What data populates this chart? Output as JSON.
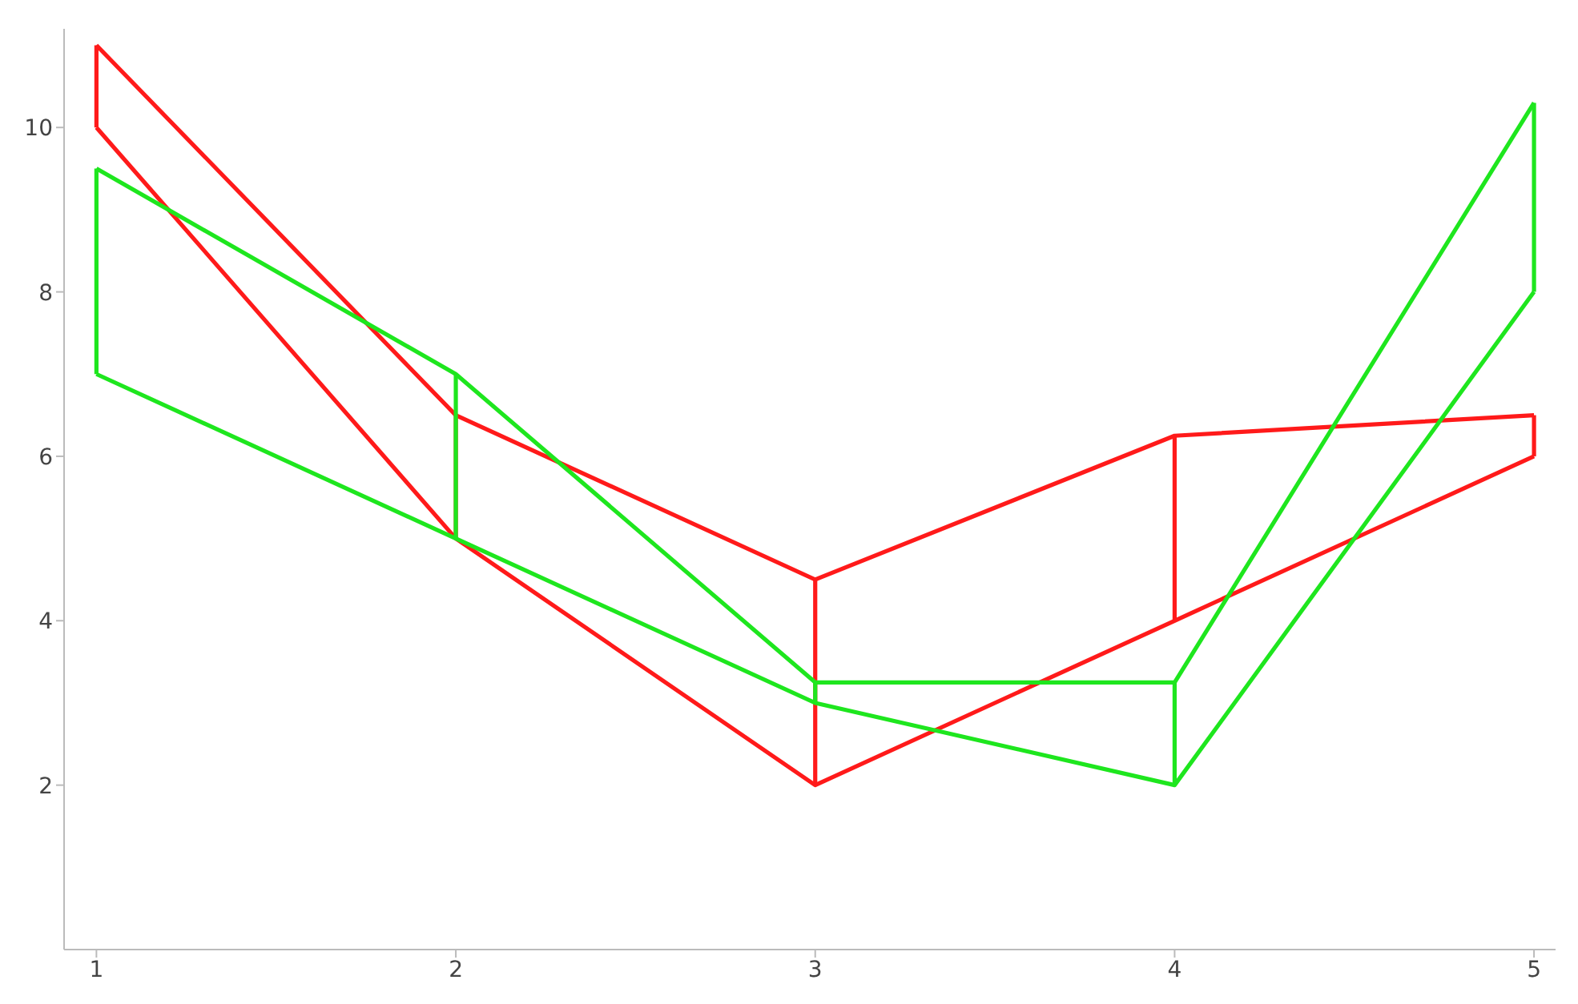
{
  "chart_data": {
    "type": "line",
    "x": [
      1,
      2,
      3,
      4,
      5
    ],
    "xlim": [
      0.91,
      5.06
    ],
    "xticks": [
      1,
      2,
      3,
      4,
      5
    ],
    "ylim": [
      0,
      11.2
    ],
    "yticks": [
      2,
      4,
      6,
      8,
      10
    ],
    "grid": false,
    "legend": false,
    "marker": "none",
    "line_style": "solid",
    "series": [
      {
        "color": "#ff1a1a",
        "values": [
          11,
          6.5,
          4.5,
          6.25,
          6.5
        ]
      },
      {
        "color": "#ff1a1a",
        "values": [
          10,
          5,
          2,
          4,
          6
        ],
        "errors": [
          [
            10,
            11
          ],
          [
            5,
            6.5
          ],
          [
            2,
            4.5
          ],
          [
            4,
            6.25
          ],
          [
            6,
            6.5
          ]
        ]
      },
      {
        "color": "#1ee61e",
        "values": [
          9.5,
          7,
          3.25,
          3.25,
          10.3
        ]
      },
      {
        "color": "#1ee61e",
        "values": [
          7,
          5,
          3,
          2,
          8
        ],
        "errors": [
          [
            7,
            9.5
          ],
          [
            5,
            7
          ],
          [
            3,
            3.25
          ],
          [
            2,
            3.25
          ],
          [
            8,
            10.3
          ]
        ]
      }
    ]
  }
}
